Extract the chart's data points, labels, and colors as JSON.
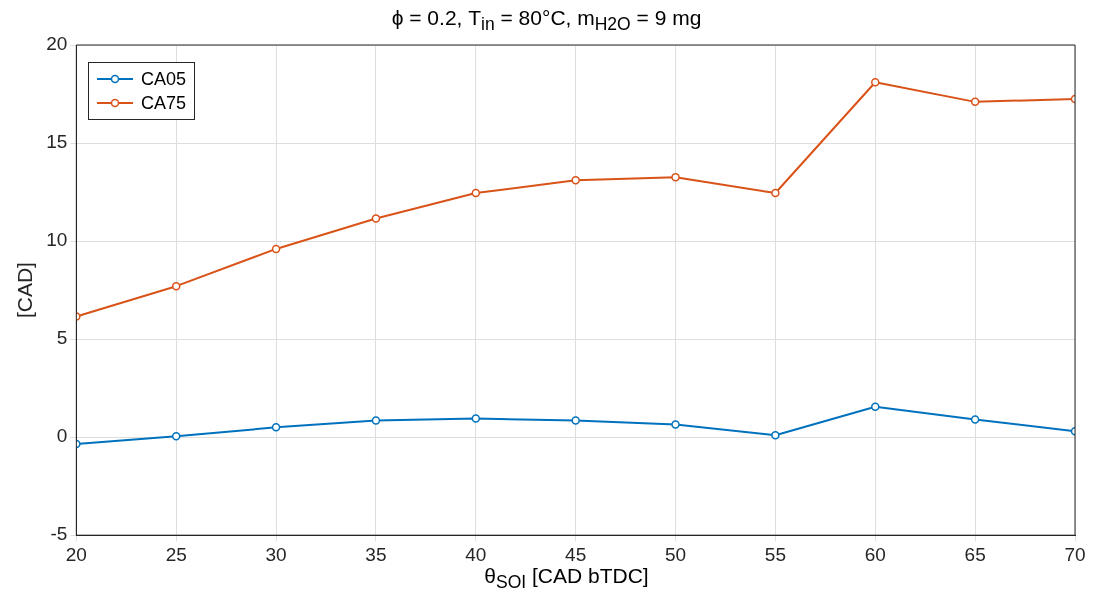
{
  "chart_data": {
    "type": "line",
    "title": "ϕ = 0.2, T$_{in}$ = 80°C, m$_{H2O}$ = 9 mg",
    "xlabel": "θ$_{SOI}$ [CAD bTDC]",
    "ylabel": "[CAD]",
    "x": [
      20,
      25,
      30,
      35,
      40,
      45,
      50,
      55,
      60,
      65,
      70
    ],
    "series": [
      {
        "name": "CA05",
        "color": "#0072bd",
        "values": [
          -0.35,
          0.05,
          0.5,
          0.85,
          0.95,
          0.85,
          0.65,
          0.1,
          1.55,
          0.9,
          0.3
        ]
      },
      {
        "name": "CA75",
        "color": "#d95319",
        "values": [
          6.15,
          7.7,
          9.6,
          11.15,
          12.45,
          13.1,
          13.25,
          12.45,
          18.1,
          17.1,
          17.25
        ]
      }
    ],
    "xlim": [
      20,
      70
    ],
    "xticks": [
      20,
      25,
      30,
      35,
      40,
      45,
      50,
      55,
      60,
      65,
      70
    ],
    "ylim": [
      -5,
      20
    ],
    "yticks": [
      -5,
      0,
      5,
      10,
      15,
      20
    ],
    "grid": true,
    "legend": "top left",
    "marker": "circle",
    "line_style": "solid"
  }
}
